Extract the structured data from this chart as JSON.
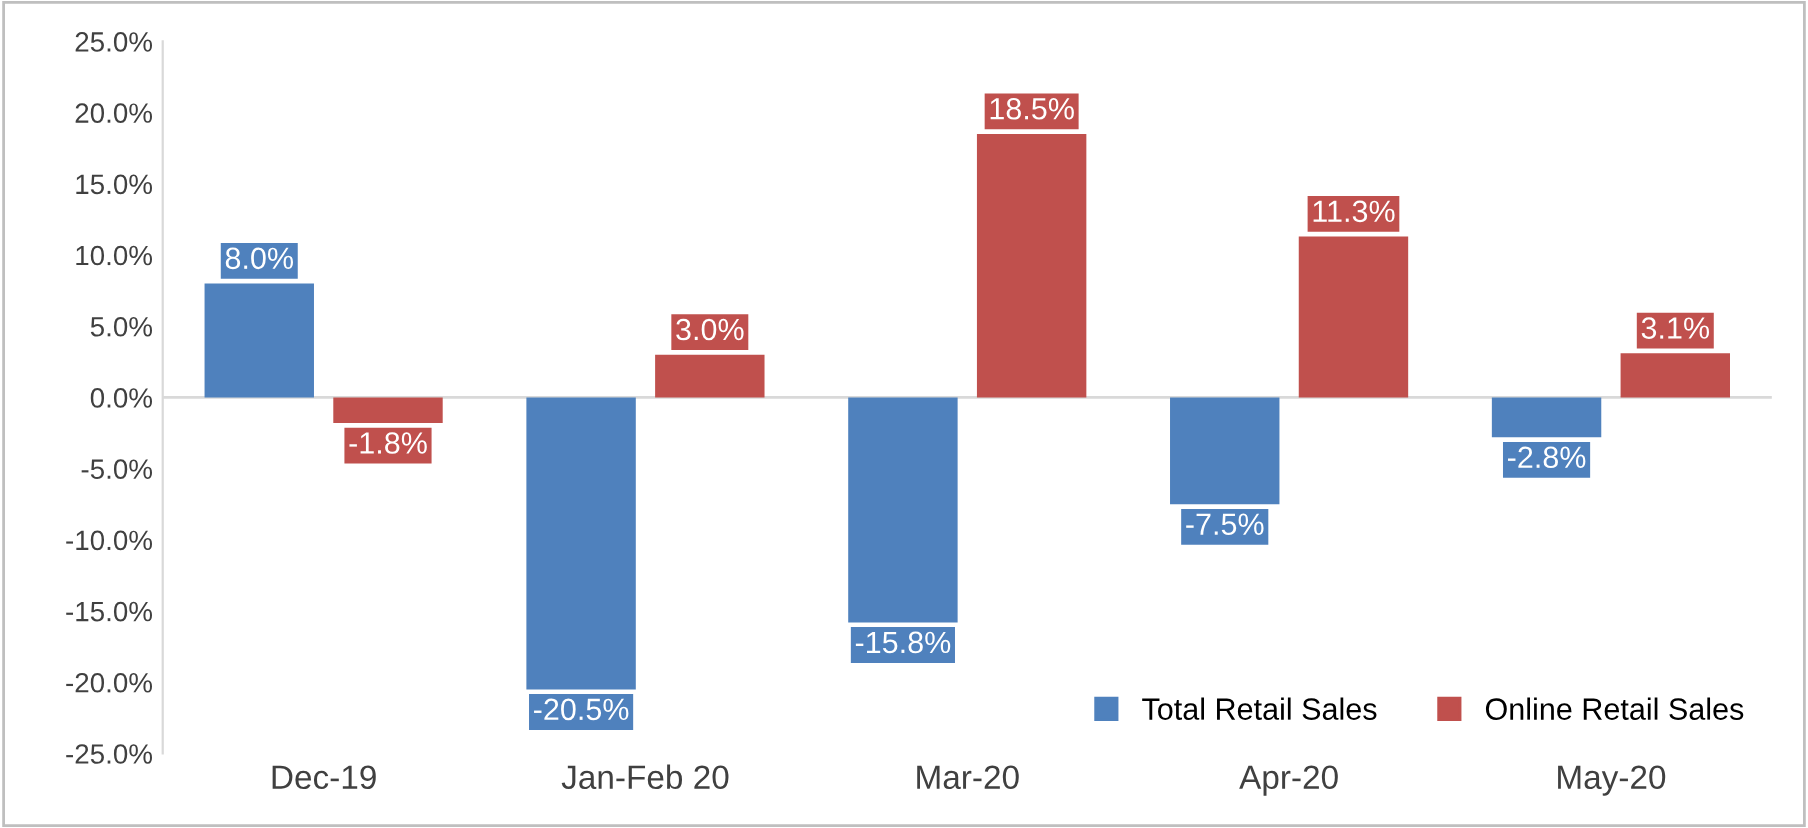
{
  "chart_data": {
    "type": "bar",
    "categories": [
      "Dec-19",
      "Jan-Feb 20",
      "Mar-20",
      "Apr-20",
      "May-20"
    ],
    "series": [
      {
        "name": "Total Retail Sales",
        "color": "#4f81bd",
        "values": [
          8.0,
          -20.5,
          -15.8,
          -7.5,
          -2.8
        ],
        "value_labels": [
          "8.0%",
          "-20.5%",
          "-15.8%",
          "-7.5%",
          "-2.8%"
        ]
      },
      {
        "name": "Online Retail Sales",
        "color": "#c0504d",
        "values": [
          -1.8,
          3.0,
          18.5,
          11.3,
          3.1
        ],
        "value_labels": [
          "-1.8%",
          "3.0%",
          "18.5%",
          "11.3%",
          "3.1%"
        ]
      }
    ],
    "ylim": [
      -25,
      25
    ],
    "yticks": [
      {
        "value": 25,
        "label": "25.0%"
      },
      {
        "value": 20,
        "label": "20.0%"
      },
      {
        "value": 15,
        "label": "15.0%"
      },
      {
        "value": 10,
        "label": "10.0%"
      },
      {
        "value": 5,
        "label": "5.0%"
      },
      {
        "value": 0,
        "label": "0.0%"
      },
      {
        "value": -5,
        "label": "-5.0%"
      },
      {
        "value": -10,
        "label": "-10.0%"
      },
      {
        "value": -15,
        "label": "-15.0%"
      },
      {
        "value": -20,
        "label": "-20.0%"
      },
      {
        "value": -25,
        "label": "-25.0%"
      }
    ],
    "ref_lines": [
      {
        "axis": "y",
        "value": 0,
        "color": "#d9d9d9"
      }
    ],
    "grid": false,
    "legend": "bottom right"
  }
}
